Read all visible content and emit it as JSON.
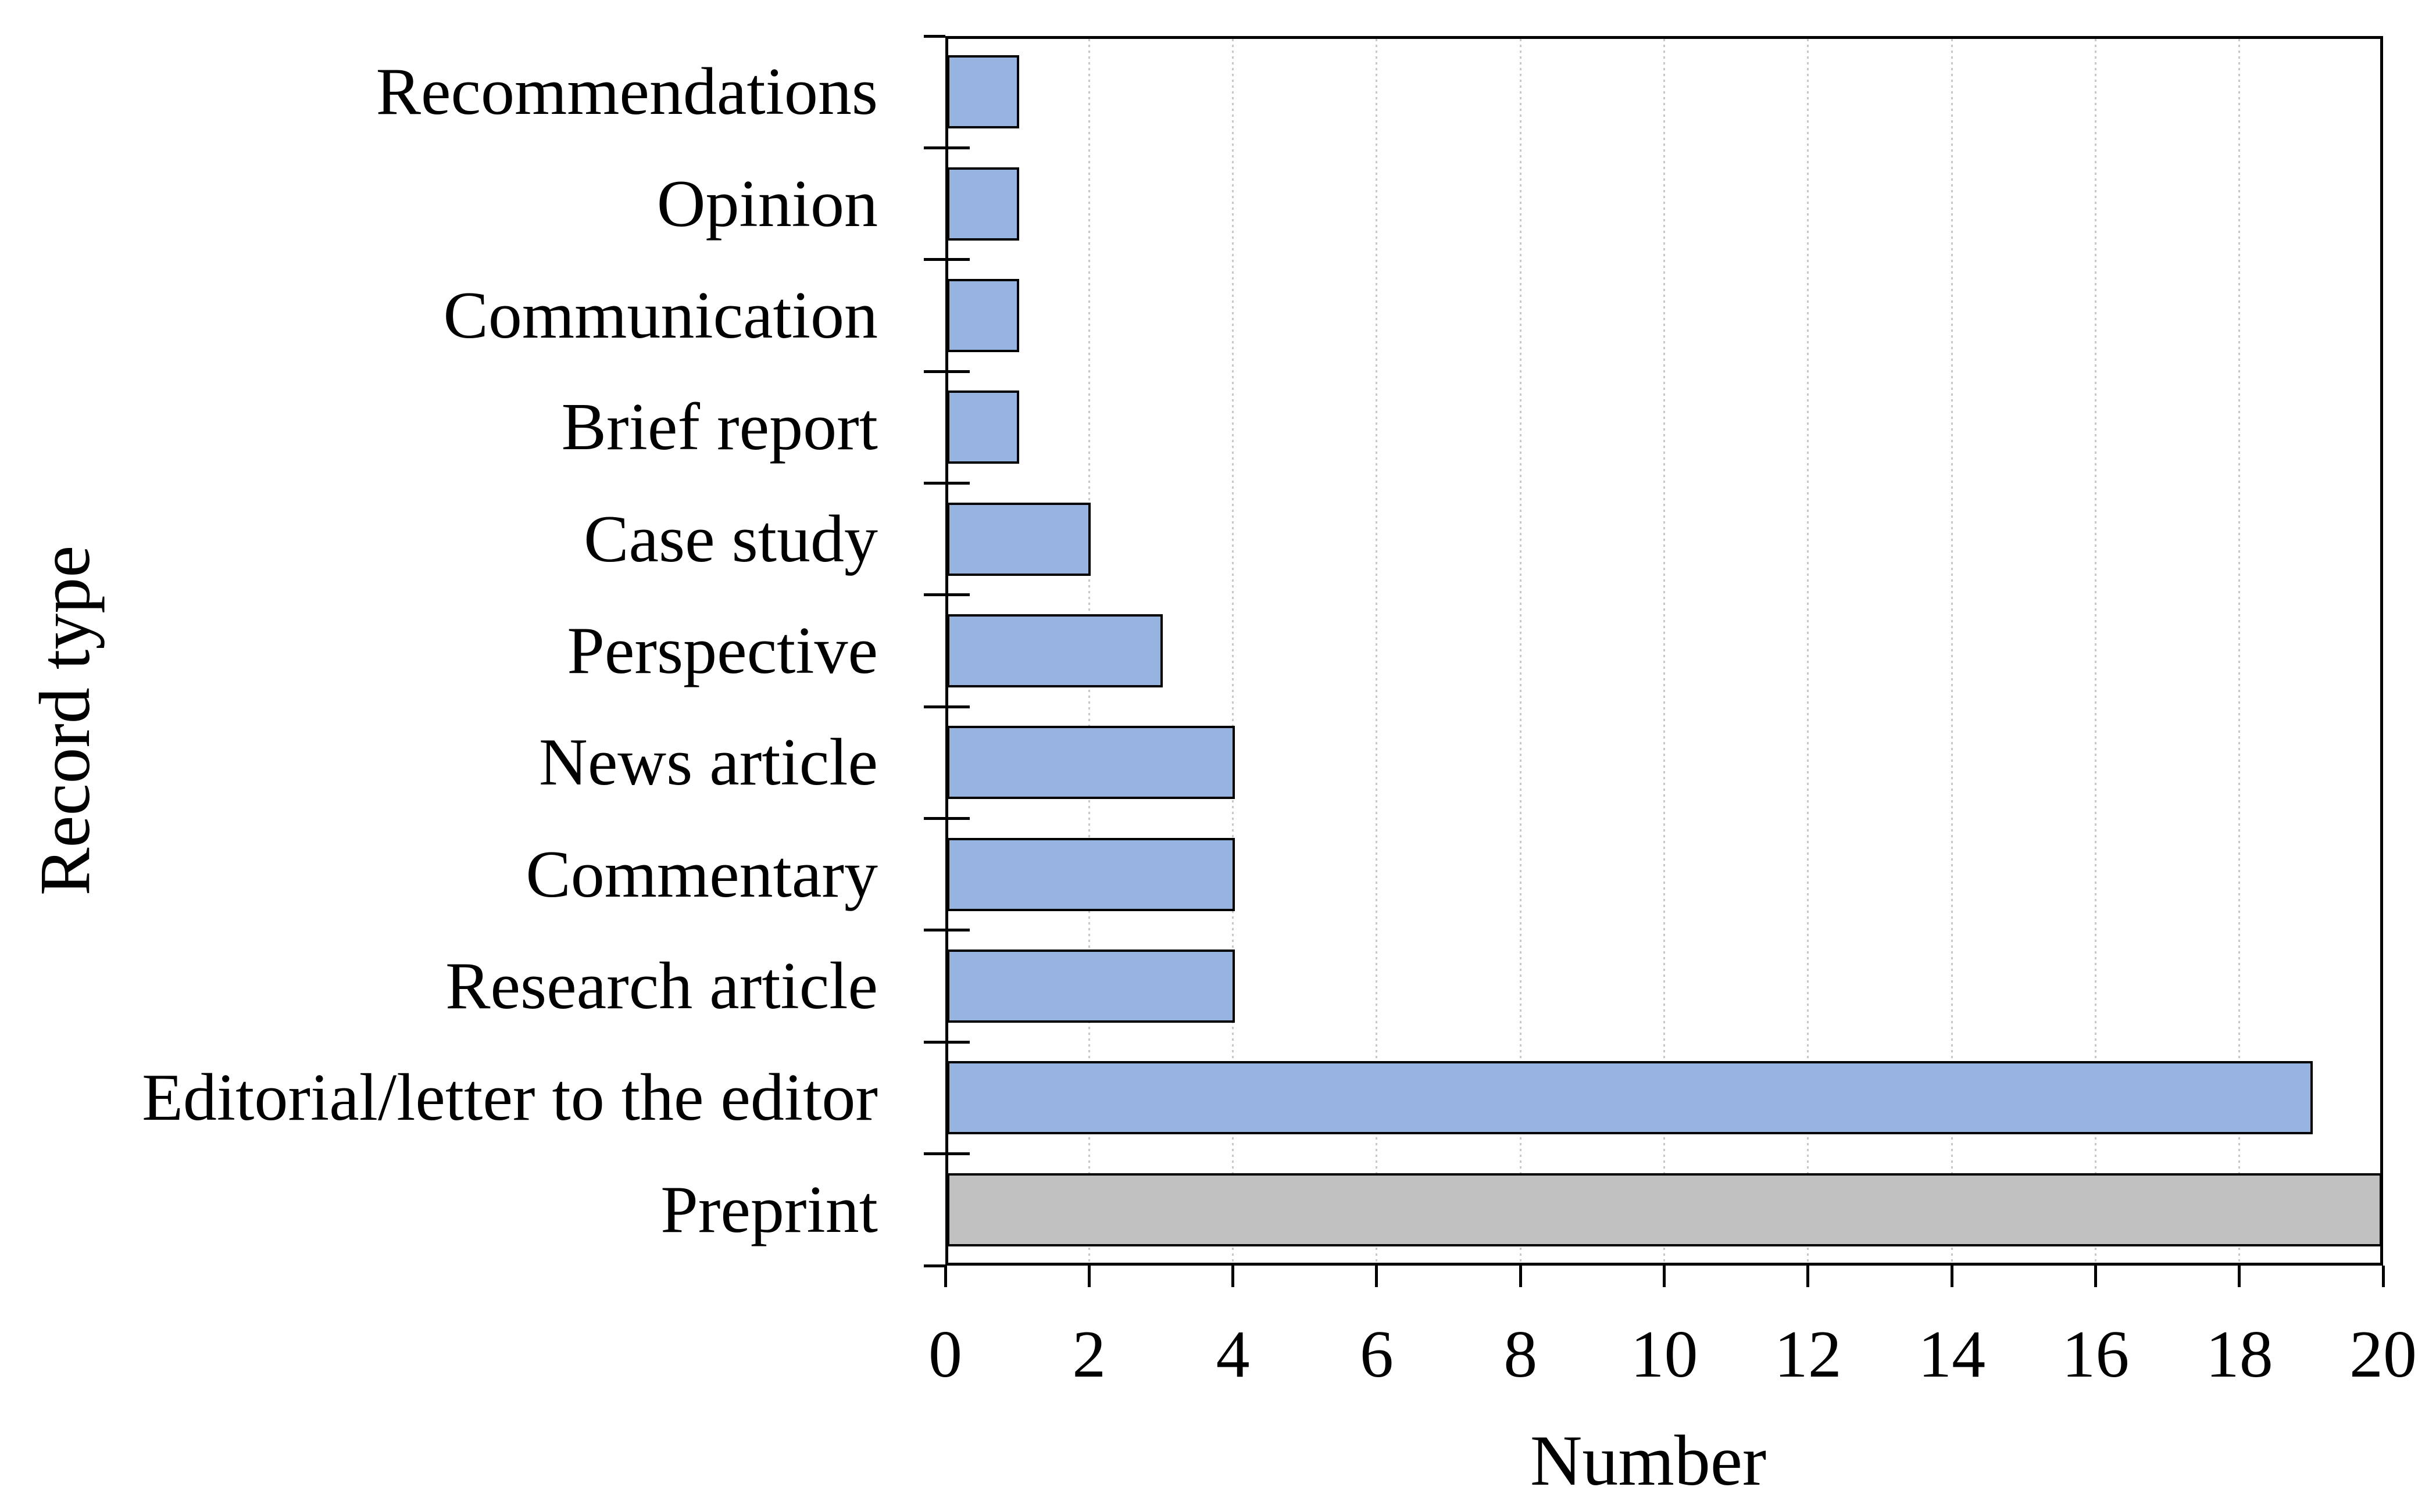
{
  "figure": {
    "background_color": "#ffffff",
    "text_color": "#000000"
  },
  "chart_data": {
    "type": "bar",
    "orientation": "horizontal",
    "title": "",
    "xlabel": "Number",
    "ylabel": "Record type",
    "xlim": [
      0,
      20
    ],
    "xticks": [
      0,
      2,
      4,
      6,
      8,
      10,
      12,
      14,
      16,
      18,
      20
    ],
    "grid": {
      "axis": "x",
      "line_style": "dotted",
      "color": "#c8c8c8",
      "behind_bars": true
    },
    "axis_color": "#000000",
    "bar_edge_color": "#000000",
    "categories": [
      "Recommendations",
      "Opinion",
      "Communication",
      "Brief report",
      "Case study",
      "Perspective",
      "News article",
      "Commentary",
      "Research article",
      "Editorial/letter to the editor",
      "Preprint"
    ],
    "values": [
      1,
      1,
      1,
      1,
      2,
      3,
      4,
      4,
      4,
      19,
      20
    ],
    "colors": [
      "#97b4e1",
      "#97b4e1",
      "#97b4e1",
      "#97b4e1",
      "#97b4e1",
      "#97b4e1",
      "#97b4e1",
      "#97b4e1",
      "#97b4e1",
      "#97b4e1",
      "#c1c1c1"
    ]
  }
}
